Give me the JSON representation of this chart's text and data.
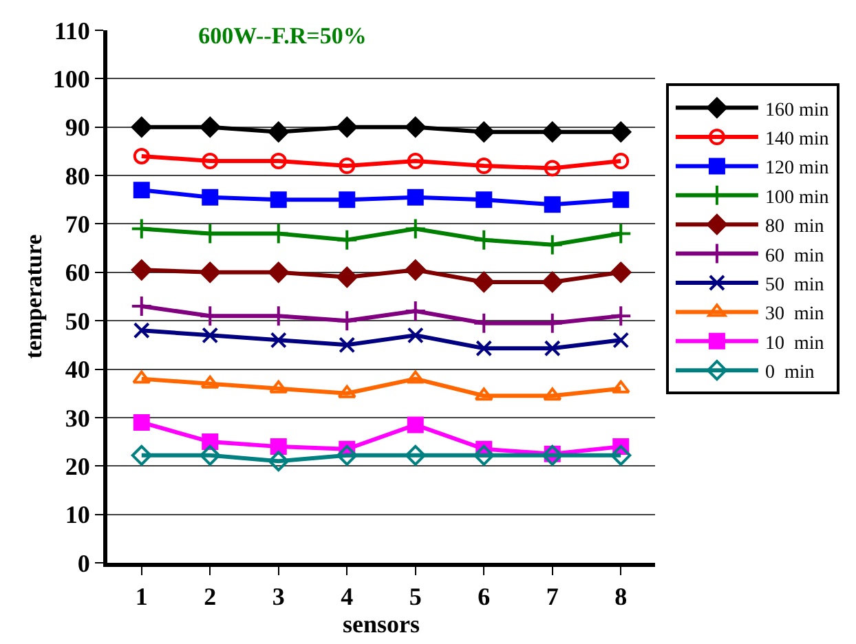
{
  "chart_data": {
    "type": "line",
    "title": "600W--F.R=50%",
    "xlabel": "sensors",
    "ylabel": "temperature",
    "x": [
      1,
      2,
      3,
      4,
      5,
      6,
      7,
      8
    ],
    "xlim": [
      0.5,
      8.5
    ],
    "xticks": [
      1,
      2,
      3,
      4,
      5,
      6,
      7,
      8
    ],
    "ylim": [
      0,
      110
    ],
    "yticks": [
      0,
      10,
      20,
      30,
      40,
      50,
      60,
      70,
      80,
      90,
      100,
      110
    ],
    "grid": "y",
    "legend": "right",
    "line_style": "solid",
    "series": [
      {
        "name": "160 min",
        "color": "#000000",
        "marker": "diamond",
        "values": [
          90,
          90,
          89,
          90,
          90,
          89,
          89,
          89
        ]
      },
      {
        "name": "140 min",
        "color": "#ff0000",
        "marker": "circle-open",
        "values": [
          84,
          83,
          83,
          82,
          83,
          82,
          81.5,
          83
        ]
      },
      {
        "name": "120 min",
        "color": "#0000ff",
        "marker": "square",
        "values": [
          77,
          75.5,
          75,
          75,
          75.5,
          75,
          74,
          75
        ]
      },
      {
        "name": "100 min",
        "color": "#008000",
        "marker": "cross",
        "values": [
          69,
          68,
          68,
          66.7,
          69,
          66.7,
          65.7,
          68
        ]
      },
      {
        "name": "80  min",
        "color": "#800000",
        "marker": "diamond",
        "values": [
          60.5,
          60,
          60,
          59,
          60.5,
          58,
          58,
          60
        ]
      },
      {
        "name": "60  min",
        "color": "#800080",
        "marker": "cross",
        "values": [
          53,
          51,
          51,
          50,
          52,
          49.5,
          49.5,
          51
        ]
      },
      {
        "name": "50  min",
        "color": "#000080",
        "marker": "x",
        "values": [
          48,
          47,
          46,
          45,
          47,
          44.3,
          44.3,
          46
        ]
      },
      {
        "name": "30  min",
        "color": "#ff6600",
        "marker": "triangle-open",
        "values": [
          38,
          37,
          36,
          35,
          38,
          34.5,
          34.5,
          36
        ]
      },
      {
        "name": "10  min",
        "color": "#ff00ff",
        "marker": "square",
        "values": [
          29,
          25,
          24,
          23.5,
          28.5,
          23.5,
          22.5,
          24
        ]
      },
      {
        "name": "0  min",
        "color": "#008080",
        "marker": "diamond-open",
        "values": [
          22.2,
          22.2,
          21,
          22.2,
          22.2,
          22.2,
          22.2,
          22.2
        ]
      }
    ]
  }
}
